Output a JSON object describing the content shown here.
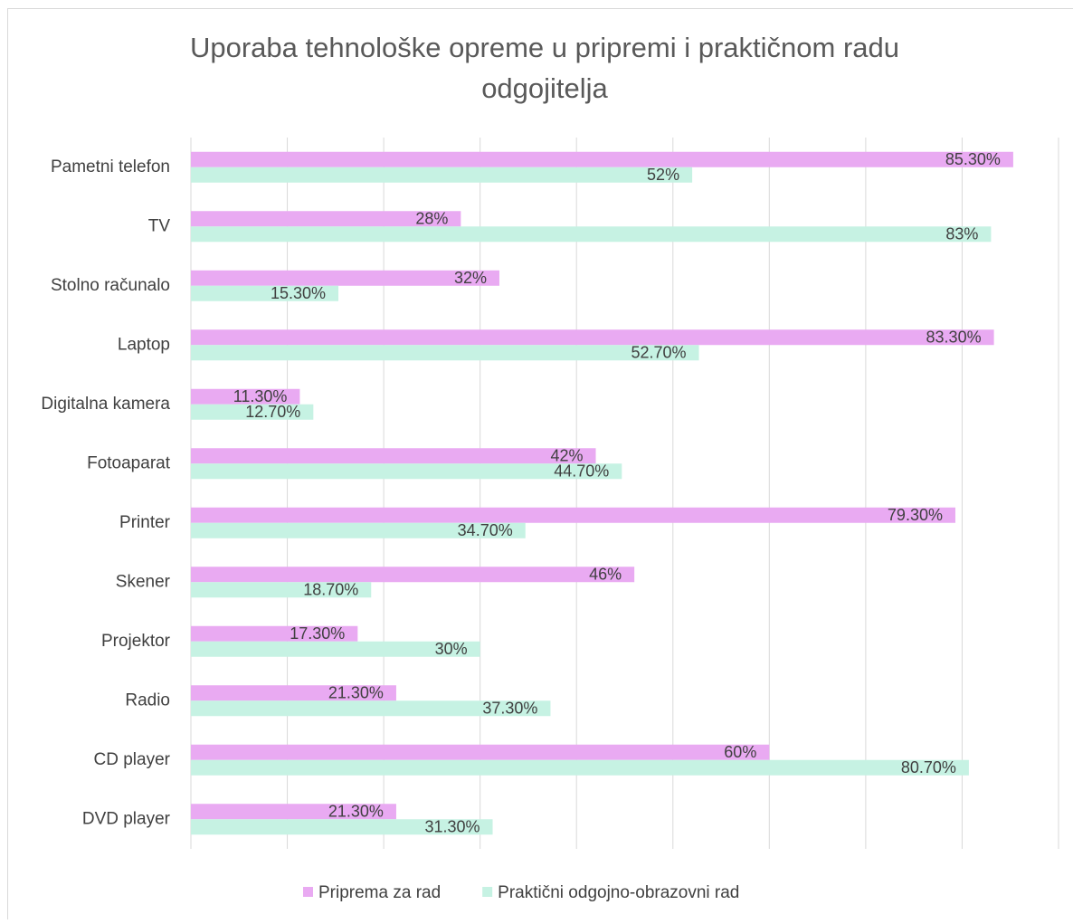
{
  "chart_data": {
    "type": "hbar",
    "title": [
      "Uporaba tehnološke opreme u pripremi i praktičnom radu",
      "odgojitelja"
    ],
    "categories": [
      "Pametni telefon",
      "TV",
      "Stolno računalo",
      "Laptop",
      "Digitalna kamera",
      "Fotoaparat",
      "Printer",
      "Skener",
      "Projektor",
      "Radio",
      "CD player",
      "DVD player"
    ],
    "series": [
      {
        "name": "Priprema za rad",
        "color": "#e9aaf2",
        "values": [
          85.3,
          28,
          32,
          83.3,
          11.3,
          42,
          79.3,
          46,
          17.3,
          21.3,
          60,
          21.3
        ],
        "value_labels": [
          "85.30%",
          "28%",
          "32%",
          "83.30%",
          "11.30%",
          "42%",
          "79.30%",
          "46%",
          "17.30%",
          "21.30%",
          "60%",
          "21.30%"
        ]
      },
      {
        "name": "Praktični odgojno-obrazovni rad",
        "color": "#c6f2e3",
        "values": [
          52,
          83,
          15.3,
          52.7,
          12.7,
          44.7,
          34.7,
          18.7,
          30,
          37.3,
          80.7,
          31.3
        ],
        "value_labels": [
          "52%",
          "83%",
          "15.30%",
          "52.70%",
          "12.70%",
          "44.70%",
          "34.70%",
          "18.70%",
          "30%",
          "37.30%",
          "80.70%",
          "31.30%"
        ]
      }
    ],
    "xlim": [
      0,
      90
    ],
    "xticks": [
      0,
      10,
      20,
      30,
      40,
      50,
      60,
      70,
      80,
      90
    ],
    "grid": true,
    "legend": "bottom"
  }
}
